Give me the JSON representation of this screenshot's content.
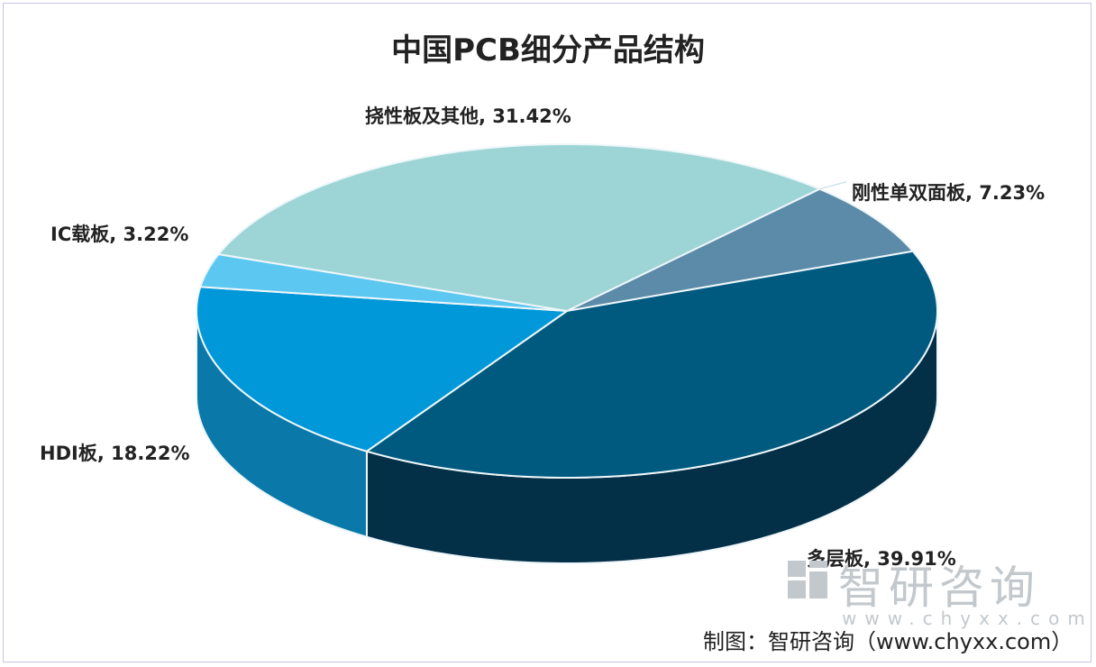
{
  "chart_data": {
    "type": "pie",
    "title": "中国PCB细分产品结构",
    "three_d": true,
    "slices": [
      {
        "label": "刚性单双面板",
        "value": 7.23,
        "display": "刚性单双面板, 7.23%",
        "color": "#5b8ba9",
        "side": "#3d6b88"
      },
      {
        "label": "多层板",
        "value": 39.91,
        "display": "多层板, 39.91%",
        "color": "#005a80",
        "side": "#032f47"
      },
      {
        "label": "HDI板",
        "value": 18.22,
        "display": "HDI板, 18.22%",
        "color": "#0098d8",
        "side": "#0a78a8"
      },
      {
        "label": "IC载板",
        "value": 3.22,
        "display": "IC载板, 3.22%",
        "color": "#5cc8f2",
        "side": "#3aa5d0"
      },
      {
        "label": "挠性板及其他",
        "value": 31.42,
        "display": "挠性板及其他, 31.42%",
        "color": "#9dd5d7",
        "side": "#7bb5b8"
      }
    ]
  },
  "watermark": {
    "name": "智研咨询",
    "url": "www.chyxx.com"
  },
  "source": "制图：智研咨询（www.chyxx.com）"
}
